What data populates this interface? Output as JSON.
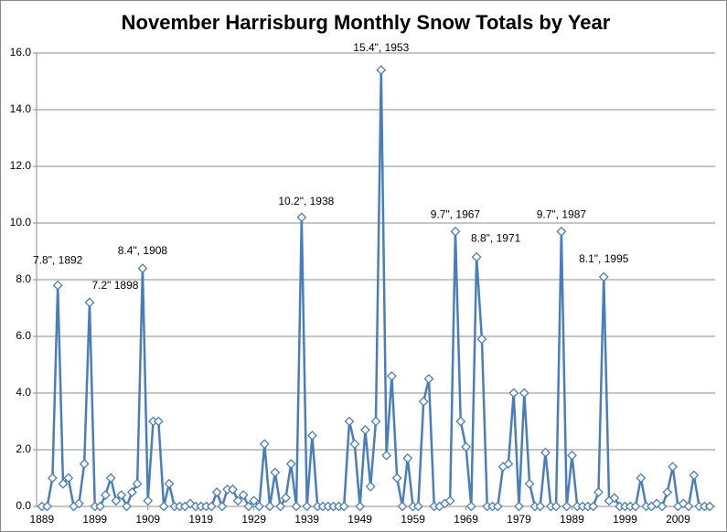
{
  "chart_data": {
    "type": "line",
    "title": "November Harrisburg Monthly Snow Totals by Year",
    "x": [
      1889,
      1890,
      1891,
      1892,
      1893,
      1894,
      1895,
      1896,
      1897,
      1898,
      1899,
      1900,
      1901,
      1902,
      1903,
      1904,
      1905,
      1906,
      1907,
      1908,
      1909,
      1910,
      1911,
      1912,
      1913,
      1914,
      1915,
      1916,
      1917,
      1918,
      1919,
      1920,
      1921,
      1922,
      1923,
      1924,
      1925,
      1926,
      1927,
      1928,
      1929,
      1930,
      1931,
      1932,
      1933,
      1934,
      1935,
      1936,
      1937,
      1938,
      1939,
      1940,
      1941,
      1942,
      1943,
      1944,
      1945,
      1946,
      1947,
      1948,
      1949,
      1950,
      1951,
      1952,
      1953,
      1954,
      1955,
      1956,
      1957,
      1958,
      1959,
      1960,
      1961,
      1962,
      1963,
      1964,
      1965,
      1966,
      1967,
      1968,
      1969,
      1970,
      1971,
      1972,
      1973,
      1974,
      1975,
      1976,
      1977,
      1978,
      1979,
      1980,
      1981,
      1982,
      1983,
      1984,
      1985,
      1986,
      1987,
      1988,
      1989,
      1990,
      1991,
      1992,
      1993,
      1994,
      1995,
      1996,
      1997,
      1998,
      1999,
      2000,
      2001,
      2002,
      2003,
      2004,
      2005,
      2006,
      2007,
      2008,
      2009,
      2010,
      2011,
      2012,
      2013,
      2014,
      2015
    ],
    "series": [
      {
        "color": "#4a7ebb",
        "values": [
          0,
          0,
          1.0,
          7.8,
          0.8,
          1.0,
          0,
          0.1,
          1.5,
          7.2,
          0,
          0,
          0.4,
          1.0,
          0.2,
          0.4,
          0,
          0.5,
          0.8,
          8.4,
          0.2,
          3.0,
          3.0,
          0,
          0.8,
          0,
          0,
          0,
          0.1,
          0,
          0,
          0,
          0,
          0.5,
          0,
          0.6,
          0.6,
          0.2,
          0.4,
          0,
          0.2,
          0,
          2.2,
          0,
          1.2,
          0,
          0.3,
          1.5,
          0,
          10.2,
          0,
          2.5,
          0,
          0,
          0,
          0,
          0,
          0,
          3.0,
          2.2,
          0,
          2.7,
          0.7,
          3.0,
          15.4,
          1.8,
          4.6,
          1.0,
          0,
          1.7,
          0,
          0,
          3.7,
          4.5,
          0,
          0,
          0.1,
          0.2,
          9.7,
          3.0,
          2.1,
          0,
          8.8,
          5.9,
          0,
          0,
          0,
          1.4,
          1.5,
          4.0,
          0,
          4.0,
          0.8,
          0,
          0,
          1.9,
          0,
          0,
          9.7,
          0,
          1.8,
          0,
          0,
          0,
          0,
          0.5,
          8.1,
          0.2,
          0.3,
          0,
          0,
          0,
          0,
          1.0,
          0,
          0,
          0.1,
          0,
          0.5,
          1.4,
          0,
          0.1,
          0,
          1.1,
          0,
          0,
          0
        ]
      }
    ],
    "xlim": [
      1888,
      2016
    ],
    "xticks": [
      1889,
      1899,
      1909,
      1919,
      1929,
      1939,
      1949,
      1959,
      1969,
      1979,
      1989,
      1999,
      2009
    ],
    "ylim": [
      0,
      16
    ],
    "yticks": [
      {
        "value": 0,
        "label": "0.0"
      },
      {
        "value": 2,
        "label": "2.0"
      },
      {
        "value": 4,
        "label": "4.0"
      },
      {
        "value": 6,
        "label": "6.0"
      },
      {
        "value": 8,
        "label": "8.0"
      },
      {
        "value": 10,
        "label": "10.0"
      },
      {
        "value": 12,
        "label": "12.0"
      },
      {
        "value": 14,
        "label": "14.0"
      },
      {
        "value": 16,
        "label": "16.0"
      }
    ],
    "grid": true,
    "annotations": [
      {
        "text": "7.8\", 1892",
        "x": 1892,
        "y": 7.8
      },
      {
        "text": "7.2\" 1898",
        "x": 1898,
        "y": 7.2
      },
      {
        "text": "8.4\", 1908",
        "x": 1908,
        "y": 8.4
      },
      {
        "text": "10.2\", 1938",
        "x": 1938,
        "y": 10.2
      },
      {
        "text": "15.4\", 1953",
        "x": 1953,
        "y": 15.4
      },
      {
        "text": "9.7\", 1967",
        "x": 1967,
        "y": 9.7
      },
      {
        "text": "8.8\", 1971",
        "x": 1971,
        "y": 8.8
      },
      {
        "text": "9.7\", 1987",
        "x": 1987,
        "y": 9.7
      },
      {
        "text": "8.1\", 1995",
        "x": 1995,
        "y": 8.1
      }
    ]
  }
}
